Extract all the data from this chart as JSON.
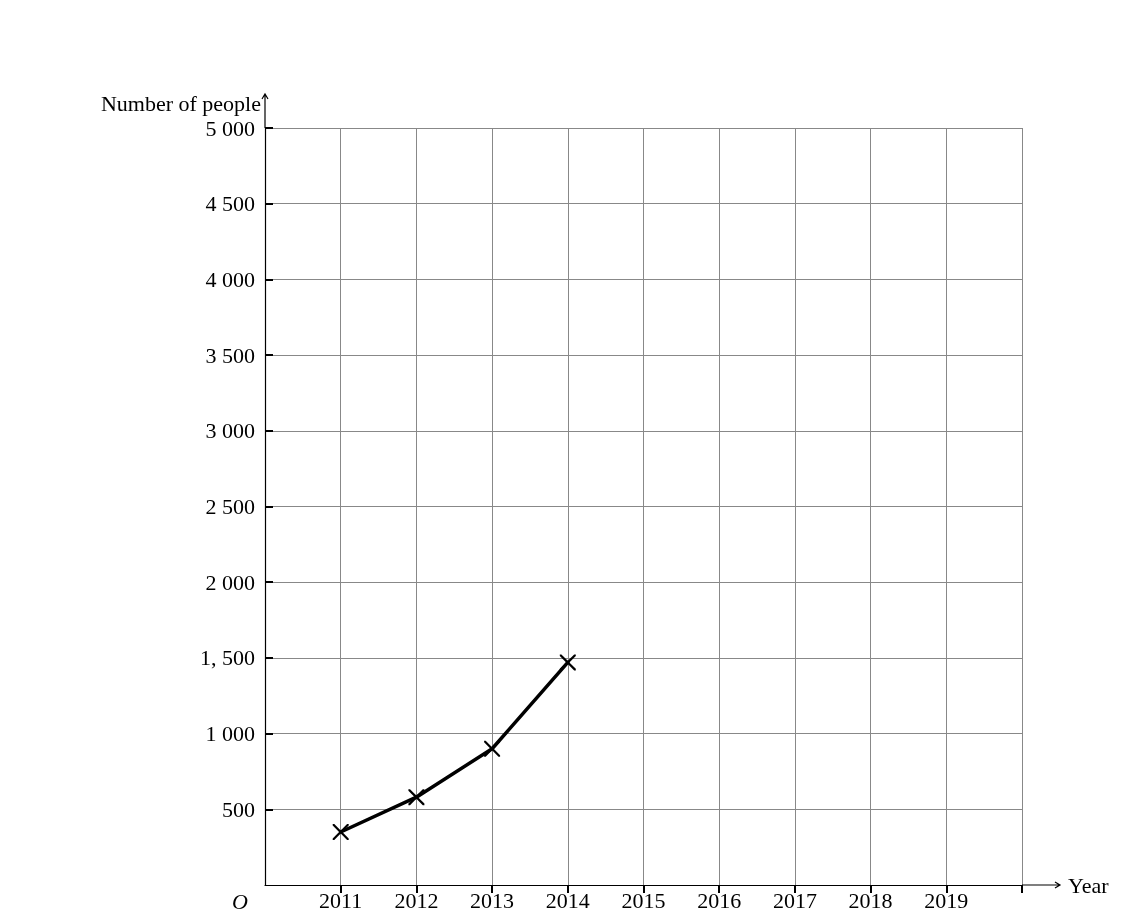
{
  "chart_data": {
    "type": "line",
    "xlabel": "Year",
    "ylabel": "Number of people",
    "x": [
      2011,
      2012,
      2013,
      2014
    ],
    "series": [
      {
        "color": "#000000",
        "values": [
          350,
          580,
          900,
          1470
        ]
      }
    ],
    "xlim": [
      2010,
      2020
    ],
    "xticks": [
      2011,
      2012,
      2013,
      2014,
      2015,
      2016,
      2017,
      2018,
      2019,
      {
        "value": 2020,
        "label": null
      }
    ],
    "ylim": [
      0,
      5000
    ],
    "yticks": [
      500,
      {
        "value": 1000,
        "label": "1 000"
      },
      {
        "value": 1500,
        "label": "1, 500"
      },
      {
        "value": 2000,
        "label": "2 000"
      },
      {
        "value": 2500,
        "label": "2 500"
      },
      {
        "value": 3000,
        "label": "3 000"
      },
      {
        "value": 3500,
        "label": "3 500"
      },
      {
        "value": 4000,
        "label": "4 000"
      },
      {
        "value": 4500,
        "label": "4 500"
      },
      {
        "value": 5000,
        "label": "5 000"
      }
    ],
    "annotations": [
      "O"
    ],
    "grid": true,
    "marker": "cross",
    "line_style": "solid"
  }
}
